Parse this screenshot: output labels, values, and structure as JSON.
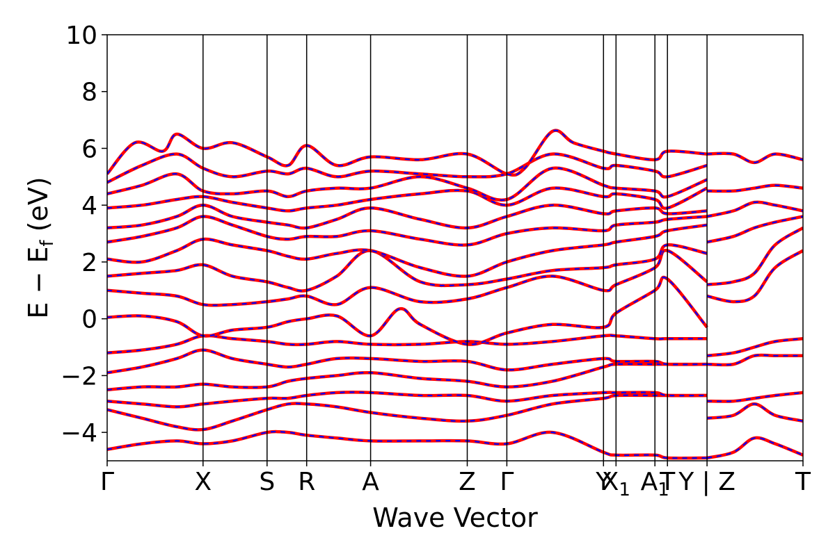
{
  "chart_data": {
    "type": "line",
    "title": "",
    "xlabel": "Wave Vector",
    "ylabel": "E − E_f (eV)",
    "ylabel_parts": {
      "main": "E − E",
      "sub": "f",
      "unit": " (eV)"
    },
    "ylim": [
      -5,
      10
    ],
    "y_ticks": [
      {
        "value": -4,
        "label": "−4"
      },
      {
        "value": -2,
        "label": "−2"
      },
      {
        "value": 0,
        "label": "0"
      },
      {
        "value": 2,
        "label": "2"
      },
      {
        "value": 4,
        "label": "4"
      },
      {
        "value": 6,
        "label": "6"
      },
      {
        "value": 8,
        "label": "8"
      },
      {
        "value": 10,
        "label": "10"
      }
    ],
    "xlim": [
      0,
      1
    ],
    "k_points": [
      {
        "pos": 0.0,
        "label": "Γ"
      },
      {
        "pos": 0.1378,
        "label": "X"
      },
      {
        "pos": 0.2298,
        "label": "S"
      },
      {
        "pos": 0.2867,
        "label": "R"
      },
      {
        "pos": 0.3786,
        "label": "A"
      },
      {
        "pos": 0.5175,
        "label": "Z"
      },
      {
        "pos": 0.5744,
        "label": "Γ"
      },
      {
        "pos": 0.7133,
        "label": "Y"
      },
      {
        "pos": 0.7313,
        "label": "X",
        "sub": "1"
      },
      {
        "pos": 0.7872,
        "label": "A",
        "sub": "1"
      },
      {
        "pos": 0.8052,
        "label": "T"
      },
      {
        "pos": 0.8621,
        "label": "Y | Z"
      },
      {
        "pos": 1.0,
        "label": "T"
      }
    ],
    "grid": false,
    "series": [
      {
        "style": "red-solid",
        "color": "#ff0000"
      },
      {
        "style": "blue-dashed",
        "color": "#0000ff"
      }
    ],
    "bands": [
      {
        "x": [
          0.0,
          0.05,
          0.1,
          0.1378,
          0.18,
          0.2298,
          0.26,
          0.2867,
          0.33,
          0.3786,
          0.45,
          0.5175,
          0.5744,
          0.64,
          0.7133,
          0.7313,
          0.7872,
          0.8052,
          0.8621
        ],
        "y": [
          -4.6,
          -4.4,
          -4.3,
          -4.4,
          -4.3,
          -4.0,
          -4.0,
          -4.1,
          -4.2,
          -4.3,
          -4.3,
          -4.3,
          -4.4,
          -4.0,
          -4.7,
          -4.8,
          -4.8,
          -4.9,
          -4.9
        ]
      },
      {
        "x": [
          0.0,
          0.05,
          0.1,
          0.1378,
          0.18,
          0.2298,
          0.26,
          0.2867,
          0.33,
          0.3786,
          0.45,
          0.5175,
          0.5744,
          0.64,
          0.7133,
          0.7313,
          0.7872,
          0.8052,
          0.8621
        ],
        "y": [
          -3.2,
          -3.5,
          -3.8,
          -3.9,
          -3.6,
          -3.2,
          -3.0,
          -3.0,
          -3.1,
          -3.3,
          -3.5,
          -3.6,
          -3.4,
          -3.0,
          -2.8,
          -2.7,
          -2.7,
          -2.7,
          -2.7
        ]
      },
      {
        "x": [
          0.0,
          0.05,
          0.1,
          0.1378,
          0.18,
          0.2298,
          0.26,
          0.2867,
          0.33,
          0.3786,
          0.45,
          0.5175,
          0.5744,
          0.64,
          0.7133,
          0.7313,
          0.7872,
          0.8052,
          0.8621
        ],
        "y": [
          -2.9,
          -3.0,
          -3.1,
          -3.0,
          -2.9,
          -2.8,
          -2.8,
          -2.7,
          -2.6,
          -2.6,
          -2.7,
          -2.7,
          -2.9,
          -2.7,
          -2.6,
          -2.6,
          -2.6,
          -2.7,
          -2.7
        ]
      },
      {
        "x": [
          0.0,
          0.05,
          0.1,
          0.1378,
          0.18,
          0.2298,
          0.26,
          0.2867,
          0.33,
          0.3786,
          0.45,
          0.5175,
          0.5744,
          0.64,
          0.7133,
          0.7313,
          0.7872,
          0.8052,
          0.8621
        ],
        "y": [
          -2.5,
          -2.4,
          -2.4,
          -2.3,
          -2.4,
          -2.4,
          -2.2,
          -2.1,
          -2.0,
          -1.9,
          -2.1,
          -2.2,
          -2.4,
          -2.2,
          -1.7,
          -1.6,
          -1.6,
          -1.6,
          -1.6
        ]
      },
      {
        "x": [
          0.0,
          0.05,
          0.1,
          0.1378,
          0.18,
          0.2298,
          0.26,
          0.2867,
          0.33,
          0.3786,
          0.45,
          0.5175,
          0.5744,
          0.64,
          0.7133,
          0.7313,
          0.7872,
          0.8052,
          0.8621
        ],
        "y": [
          -1.9,
          -1.7,
          -1.4,
          -1.1,
          -1.4,
          -1.6,
          -1.7,
          -1.6,
          -1.4,
          -1.4,
          -1.5,
          -1.5,
          -1.8,
          -1.6,
          -1.4,
          -1.5,
          -1.5,
          -1.6,
          -1.6
        ]
      },
      {
        "x": [
          0.0,
          0.05,
          0.1,
          0.1378,
          0.18,
          0.2298,
          0.26,
          0.2867,
          0.33,
          0.3786,
          0.45,
          0.5175,
          0.5744,
          0.64,
          0.7133,
          0.7313,
          0.7872,
          0.8052,
          0.8621
        ],
        "y": [
          -1.2,
          -1.1,
          -0.9,
          -0.6,
          -0.7,
          -0.8,
          -0.9,
          -0.9,
          -0.8,
          -0.9,
          -0.9,
          -0.8,
          -0.9,
          -0.8,
          -0.6,
          -0.6,
          -0.7,
          -0.7,
          -0.7
        ]
      },
      {
        "x": [
          0.0,
          0.05,
          0.1,
          0.1378,
          0.18,
          0.2298,
          0.26,
          0.2867,
          0.33,
          0.3786,
          0.42,
          0.45,
          0.5175,
          0.5744,
          0.64,
          0.7133,
          0.7313,
          0.7872,
          0.8052,
          0.8621
        ],
        "y": [
          0.05,
          0.1,
          -0.1,
          -0.6,
          -0.4,
          -0.3,
          -0.1,
          0.0,
          0.1,
          -0.6,
          0.35,
          -0.2,
          -0.9,
          -0.5,
          -0.2,
          -0.3,
          0.2,
          1.0,
          1.4,
          -0.3
        ]
      },
      {
        "x": [
          0.0,
          0.05,
          0.1,
          0.1378,
          0.18,
          0.2298,
          0.26,
          0.2867,
          0.33,
          0.3786,
          0.45,
          0.5175,
          0.5744,
          0.64,
          0.7133,
          0.7313,
          0.7872,
          0.8052,
          0.8621
        ],
        "y": [
          1.0,
          0.9,
          0.8,
          0.5,
          0.5,
          0.6,
          0.7,
          0.8,
          0.5,
          1.1,
          0.6,
          0.7,
          1.1,
          1.5,
          1.0,
          1.2,
          1.8,
          2.4,
          1.3
        ]
      },
      {
        "x": [
          0.0,
          0.05,
          0.1,
          0.1378,
          0.18,
          0.2298,
          0.26,
          0.2867,
          0.33,
          0.3786,
          0.45,
          0.5175,
          0.5744,
          0.64,
          0.7133,
          0.7313,
          0.7872,
          0.8052,
          0.8621
        ],
        "y": [
          1.5,
          1.6,
          1.7,
          1.9,
          1.5,
          1.3,
          1.1,
          1.0,
          1.5,
          2.4,
          1.3,
          1.2,
          1.4,
          1.7,
          1.8,
          1.9,
          2.1,
          2.6,
          2.3
        ]
      },
      {
        "x": [
          0.0,
          0.05,
          0.1,
          0.1378,
          0.18,
          0.2298,
          0.26,
          0.2867,
          0.33,
          0.3786,
          0.45,
          0.5175,
          0.5744,
          0.64,
          0.7133,
          0.7313,
          0.7872,
          0.8052,
          0.8621
        ],
        "y": [
          2.1,
          2.0,
          2.4,
          2.8,
          2.6,
          2.4,
          2.2,
          2.1,
          2.3,
          2.4,
          1.8,
          1.5,
          2.0,
          2.4,
          2.6,
          2.7,
          2.9,
          3.1,
          3.3
        ]
      },
      {
        "x": [
          0.0,
          0.05,
          0.1,
          0.1378,
          0.18,
          0.2298,
          0.26,
          0.2867,
          0.33,
          0.3786,
          0.45,
          0.5175,
          0.5744,
          0.64,
          0.7133,
          0.7313,
          0.7872,
          0.8052,
          0.8621
        ],
        "y": [
          2.7,
          2.9,
          3.2,
          3.6,
          3.3,
          2.9,
          2.8,
          2.9,
          2.9,
          3.1,
          2.8,
          2.6,
          3.0,
          3.2,
          3.1,
          3.3,
          3.4,
          3.5,
          3.6
        ]
      },
      {
        "x": [
          0.0,
          0.05,
          0.1,
          0.1378,
          0.18,
          0.2298,
          0.26,
          0.2867,
          0.33,
          0.3786,
          0.45,
          0.5175,
          0.5744,
          0.64,
          0.7133,
          0.7313,
          0.7872,
          0.8052,
          0.8621
        ],
        "y": [
          3.2,
          3.3,
          3.6,
          4.0,
          3.6,
          3.4,
          3.3,
          3.2,
          3.5,
          3.9,
          3.5,
          3.2,
          3.6,
          4.0,
          3.7,
          3.8,
          3.9,
          3.7,
          3.8
        ]
      },
      {
        "x": [
          0.0,
          0.05,
          0.1,
          0.1378,
          0.18,
          0.2298,
          0.26,
          0.2867,
          0.33,
          0.3786,
          0.45,
          0.5175,
          0.5744,
          0.64,
          0.7133,
          0.7313,
          0.7872,
          0.8052,
          0.8621
        ],
        "y": [
          3.9,
          4.0,
          4.2,
          4.3,
          4.1,
          3.9,
          3.8,
          3.9,
          4.0,
          4.2,
          4.4,
          4.5,
          4.0,
          4.6,
          4.3,
          4.4,
          4.2,
          3.9,
          4.6
        ]
      },
      {
        "x": [
          0.0,
          0.05,
          0.1,
          0.1378,
          0.18,
          0.2298,
          0.26,
          0.2867,
          0.33,
          0.3786,
          0.45,
          0.5175,
          0.5744,
          0.64,
          0.7133,
          0.7313,
          0.7872,
          0.8052,
          0.8621
        ],
        "y": [
          4.4,
          4.7,
          5.1,
          4.5,
          4.4,
          4.5,
          4.3,
          4.5,
          4.6,
          4.6,
          5.0,
          4.6,
          4.2,
          5.3,
          4.7,
          4.6,
          4.5,
          4.3,
          4.9
        ]
      },
      {
        "x": [
          0.0,
          0.05,
          0.1,
          0.1378,
          0.18,
          0.2298,
          0.26,
          0.2867,
          0.33,
          0.3786,
          0.45,
          0.5175,
          0.5744,
          0.64,
          0.7133,
          0.7313,
          0.7872,
          0.8052,
          0.8621
        ],
        "y": [
          4.8,
          5.4,
          5.8,
          5.3,
          5.0,
          5.2,
          5.1,
          5.3,
          5.0,
          5.2,
          5.1,
          5.0,
          5.1,
          5.8,
          5.3,
          5.4,
          5.2,
          5.0,
          5.4
        ]
      },
      {
        "x": [
          0.0,
          0.04,
          0.08,
          0.1,
          0.1378,
          0.18,
          0.2298,
          0.26,
          0.2867,
          0.33,
          0.3786,
          0.45,
          0.5175,
          0.5744,
          0.6,
          0.64,
          0.67,
          0.7133,
          0.7313,
          0.7872,
          0.8052,
          0.8621
        ],
        "y": [
          5.1,
          6.2,
          5.9,
          6.5,
          6.0,
          6.2,
          5.7,
          5.4,
          6.1,
          5.4,
          5.7,
          5.6,
          5.8,
          5.1,
          5.3,
          6.6,
          6.2,
          5.9,
          5.8,
          5.6,
          5.9,
          5.8
        ]
      },
      {
        "x": [
          0.8621,
          0.9,
          0.93,
          0.96,
          1.0
        ],
        "y": [
          -4.9,
          -4.7,
          -4.2,
          -4.4,
          -4.8
        ]
      },
      {
        "x": [
          0.8621,
          0.9,
          0.93,
          0.96,
          1.0
        ],
        "y": [
          -3.5,
          -3.4,
          -3.0,
          -3.4,
          -3.6
        ]
      },
      {
        "x": [
          0.8621,
          0.9,
          0.93,
          0.96,
          1.0
        ],
        "y": [
          -2.9,
          -2.9,
          -2.8,
          -2.7,
          -2.6
        ]
      },
      {
        "x": [
          0.8621,
          0.9,
          0.93,
          0.96,
          1.0
        ],
        "y": [
          -1.6,
          -1.6,
          -1.3,
          -1.3,
          -1.3
        ]
      },
      {
        "x": [
          0.8621,
          0.9,
          0.93,
          0.96,
          1.0
        ],
        "y": [
          -1.3,
          -1.2,
          -1.0,
          -0.8,
          -0.7
        ]
      },
      {
        "x": [
          0.8621,
          0.9,
          0.93,
          0.96,
          1.0
        ],
        "y": [
          0.8,
          0.6,
          0.8,
          1.8,
          2.4
        ]
      },
      {
        "x": [
          0.8621,
          0.9,
          0.93,
          0.96,
          1.0
        ],
        "y": [
          1.2,
          1.3,
          1.6,
          2.6,
          3.2
        ]
      },
      {
        "x": [
          0.8621,
          0.9,
          0.93,
          0.96,
          1.0
        ],
        "y": [
          2.7,
          2.9,
          3.2,
          3.4,
          3.6
        ]
      },
      {
        "x": [
          0.8621,
          0.9,
          0.93,
          0.96,
          1.0
        ],
        "y": [
          3.6,
          3.8,
          4.1,
          4.0,
          3.8
        ]
      },
      {
        "x": [
          0.8621,
          0.9,
          0.93,
          0.96,
          1.0
        ],
        "y": [
          4.5,
          4.5,
          4.6,
          4.7,
          4.6
        ]
      },
      {
        "x": [
          0.8621,
          0.9,
          0.93,
          0.96,
          1.0
        ],
        "y": [
          5.8,
          5.8,
          5.5,
          5.8,
          5.6
        ]
      }
    ]
  }
}
